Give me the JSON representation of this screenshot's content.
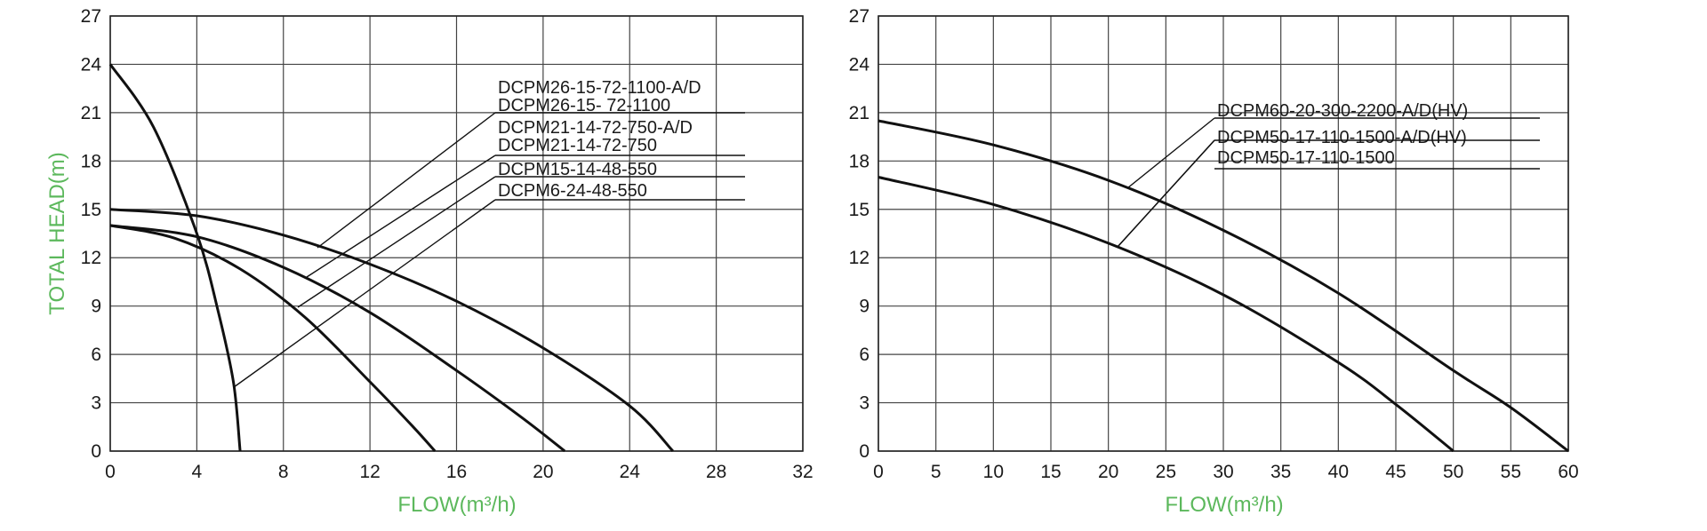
{
  "chart_data": [
    {
      "type": "line",
      "xlabel": "FLOW(m³/h)",
      "ylabel": "TOTAL HEAD(m)",
      "xlim": [
        0,
        32
      ],
      "ylim": [
        0,
        27
      ],
      "xticks": [
        0,
        4,
        8,
        12,
        16,
        20,
        24,
        28,
        32
      ],
      "yticks": [
        0,
        3,
        6,
        9,
        12,
        15,
        18,
        21,
        24,
        27
      ],
      "grid": true,
      "series": [
        {
          "name": "DCPM6-24-48-550",
          "x": [
            0,
            2,
            4,
            5,
            5.7,
            6
          ],
          "y": [
            24,
            20.1,
            13.5,
            8.6,
            4.2,
            0
          ]
        },
        {
          "name": "DCPM15-14-48-550",
          "x": [
            0,
            3,
            6,
            9,
            12,
            14,
            15
          ],
          "y": [
            14,
            13.2,
            11.3,
            8.3,
            4.3,
            1.5,
            0
          ]
        },
        {
          "name": "DCPM21-14-72-750",
          "x": [
            0,
            4,
            8,
            12,
            16,
            19,
            21
          ],
          "y": [
            14,
            13.3,
            11.4,
            8.6,
            5.0,
            2.1,
            0
          ]
        },
        {
          "name": "DCPM21-14-72-750-A/D",
          "x": [
            0,
            4,
            8,
            12,
            16,
            19,
            21
          ],
          "y": [
            14,
            13.3,
            11.4,
            8.6,
            5.0,
            2.1,
            0
          ]
        },
        {
          "name": "DCPM26-15-72-1100",
          "x": [
            0,
            4,
            8,
            12,
            16,
            20,
            24,
            26
          ],
          "y": [
            15,
            14.6,
            13.4,
            11.6,
            9.3,
            6.4,
            2.8,
            0
          ]
        },
        {
          "name": "DCPM26-15-72-1100-A/D",
          "x": [
            0,
            4,
            8,
            12,
            16,
            20,
            24,
            26
          ],
          "y": [
            15,
            14.6,
            13.4,
            11.6,
            9.3,
            6.4,
            2.8,
            0
          ]
        }
      ],
      "labels": [
        "DCPM26-15-72-1100-A/D",
        "DCPM26-15- 72-1100",
        "DCPM21-14-72-750-A/D",
        "DCPM21-14-72-750",
        "DCPM15-14-48-550",
        "DCPM6-24-48-550"
      ]
    },
    {
      "type": "line",
      "xlabel": "FLOW(m³/h)",
      "ylabel": "",
      "xlim": [
        0,
        60
      ],
      "ylim": [
        0,
        27
      ],
      "xticks": [
        0,
        5,
        10,
        15,
        20,
        25,
        30,
        35,
        40,
        45,
        50,
        55,
        60
      ],
      "yticks": [
        0,
        3,
        6,
        9,
        12,
        15,
        18,
        21,
        24,
        27
      ],
      "grid": true,
      "series": [
        {
          "name": "DCPM60-20-300-2200-A/D(HV)",
          "x": [
            0,
            10,
            20,
            30,
            40,
            50,
            55,
            60
          ],
          "y": [
            20.5,
            19.0,
            16.8,
            13.7,
            9.8,
            5.0,
            2.7,
            0
          ]
        },
        {
          "name": "DCPM50-17-110-1500-A/D(HV)",
          "x": [
            0,
            10,
            20,
            30,
            40,
            45,
            50
          ],
          "y": [
            17,
            15.3,
            12.9,
            9.7,
            5.5,
            2.9,
            0
          ]
        },
        {
          "name": "DCPM50-17-110-1500",
          "x": [
            0,
            10,
            20,
            30,
            40,
            45,
            50
          ],
          "y": [
            17,
            15.3,
            12.9,
            9.7,
            5.5,
            2.9,
            0
          ]
        }
      ],
      "labels": [
        "DCPM60-20-300-2200-A/D(HV)",
        "DCPM50-17-110-1500-A/D(HV)",
        "DCPM50-17-110-1500"
      ]
    }
  ],
  "colors": {
    "axis_title": "#5cb85c",
    "grid": "#444444",
    "curve": "#111111"
  }
}
